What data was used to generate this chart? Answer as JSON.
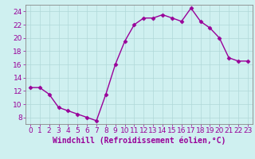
{
  "x": [
    0,
    1,
    2,
    3,
    4,
    5,
    6,
    7,
    8,
    9,
    10,
    11,
    12,
    13,
    14,
    15,
    16,
    17,
    18,
    19,
    20,
    21,
    22,
    23
  ],
  "y": [
    12.5,
    12.5,
    11.5,
    9.5,
    9.0,
    8.5,
    8.0,
    7.5,
    11.5,
    16.0,
    19.5,
    22.0,
    23.0,
    23.0,
    23.5,
    23.0,
    22.5,
    24.5,
    22.5,
    21.5,
    20.0,
    17.0,
    16.5,
    16.5
  ],
  "line_color": "#990099",
  "marker": "D",
  "markersize": 2.5,
  "linewidth": 1.0,
  "xlabel": "Windchill (Refroidissement éolien,°C)",
  "xlabel_fontsize": 7,
  "ylim": [
    7,
    25
  ],
  "xlim": [
    -0.5,
    23.5
  ],
  "yticks": [
    8,
    10,
    12,
    14,
    16,
    18,
    20,
    22,
    24
  ],
  "xticks": [
    0,
    1,
    2,
    3,
    4,
    5,
    6,
    7,
    8,
    9,
    10,
    11,
    12,
    13,
    14,
    15,
    16,
    17,
    18,
    19,
    20,
    21,
    22,
    23
  ],
  "grid_color": "#b0d8d8",
  "bg_color": "#cff0f0",
  "tick_color": "#990099",
  "tick_fontsize": 6.5,
  "fig_bg": "#cff0f0",
  "spine_color": "#888888"
}
